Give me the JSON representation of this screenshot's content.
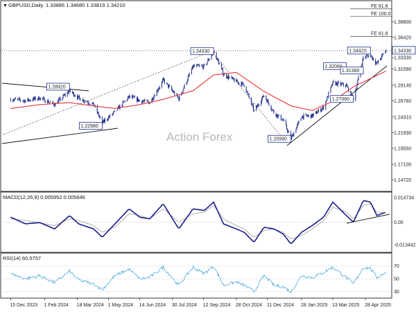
{
  "title": "GBPUSD,Daily",
  "ohlc": "1.33886 1.34680 1.33819 1.34210",
  "watermark": "Action Forex",
  "current_price": "1.34330",
  "colors": {
    "candle": "#1a2a8a",
    "ma": "#e02020",
    "macd_main": "#1a1a8a",
    "macd_signal": "#aaaaaa",
    "rsi": "#4aa8e0",
    "box_border": "#1a2a8a",
    "trendline": "#111111"
  },
  "chart_data": [
    {
      "type": "candlestick",
      "title": "GBPUSD,Daily",
      "ylim": [
        1.13,
        1.42
      ],
      "y_ticks": [
        "1.38800",
        "1.36420",
        "1.33330",
        "1.31590",
        "1.29140",
        "1.26760",
        "1.24310",
        "1.21930",
        "1.19550",
        "1.17100",
        "1.14720"
      ],
      "x_ticks": [
        "15 Dec 2023",
        "1 Feb 2024",
        "18 Mar 2024",
        "1 May 2024",
        "14 Jun 2024",
        "30 Jul 2024",
        "12 Sep 2024",
        "28 Oct 2024",
        "11 Dec 2024",
        "28 Jan 2025",
        "13 Mar 2025",
        "28 Apr 2025"
      ],
      "close_path": [
        [
          "2023-12-15",
          1.27
        ],
        [
          "2024-01-05",
          1.268
        ],
        [
          "2024-01-25",
          1.272
        ],
        [
          "2024-02-15",
          1.262
        ],
        [
          "2024-03-07",
          1.283
        ],
        [
          "2024-03-20",
          1.272
        ],
        [
          "2024-04-10",
          1.262
        ],
        [
          "2024-04-22",
          1.234
        ],
        [
          "2024-05-10",
          1.251
        ],
        [
          "2024-05-30",
          1.274
        ],
        [
          "2024-06-14",
          1.268
        ],
        [
          "2024-06-28",
          1.265
        ],
        [
          "2024-07-17",
          1.299
        ],
        [
          "2024-08-08",
          1.271
        ],
        [
          "2024-08-28",
          1.32
        ],
        [
          "2024-09-13",
          1.32
        ],
        [
          "2024-09-26",
          1.343
        ],
        [
          "2024-10-10",
          1.308
        ],
        [
          "2024-10-28",
          1.297
        ],
        [
          "2024-11-08",
          1.292
        ],
        [
          "2024-11-22",
          1.252
        ],
        [
          "2024-12-06",
          1.276
        ],
        [
          "2024-12-20",
          1.25
        ],
        [
          "2025-01-02",
          1.238
        ],
        [
          "2025-01-13",
          1.21
        ],
        [
          "2025-01-28",
          1.244
        ],
        [
          "2025-02-12",
          1.245
        ],
        [
          "2025-02-28",
          1.258
        ],
        [
          "2025-03-13",
          1.295
        ],
        [
          "2025-04-01",
          1.291
        ],
        [
          "2025-04-11",
          1.27
        ],
        [
          "2025-04-25",
          1.334
        ],
        [
          "2025-05-05",
          1.337
        ],
        [
          "2025-05-14",
          1.324
        ],
        [
          "2025-05-27",
          1.345
        ]
      ],
      "moving_average_path": [
        [
          "2023-12-15",
          1.256
        ],
        [
          "2024-01-25",
          1.262
        ],
        [
          "2024-03-07",
          1.265
        ],
        [
          "2024-04-10",
          1.26
        ],
        [
          "2024-05-10",
          1.256
        ],
        [
          "2024-06-14",
          1.262
        ],
        [
          "2024-07-17",
          1.27
        ],
        [
          "2024-08-28",
          1.283
        ],
        [
          "2024-09-26",
          1.307
        ],
        [
          "2024-10-28",
          1.311
        ],
        [
          "2024-12-06",
          1.282
        ],
        [
          "2025-01-13",
          1.26
        ],
        [
          "2025-02-12",
          1.253
        ],
        [
          "2025-03-13",
          1.267
        ],
        [
          "2025-04-11",
          1.289
        ],
        [
          "2025-05-27",
          1.313
        ]
      ],
      "annotations": [
        {
          "text": "1.28920",
          "date": "2024-03-07",
          "price": 1.2892
        },
        {
          "text": "1.22980",
          "date": "2024-04-22",
          "price": 1.2298
        },
        {
          "text": "1.34330",
          "date": "2024-09-26",
          "price": 1.3433
        },
        {
          "text": "1.20990",
          "date": "2025-01-13",
          "price": 1.2099
        },
        {
          "text": "1.27060",
          "date": "2025-04-11",
          "price": 1.2706
        },
        {
          "text": "1.32060",
          "date": "2025-04-01",
          "price": 1.3206
        },
        {
          "text": "1.31380",
          "date": "2025-04-25",
          "price": 1.3138
        },
        {
          "text": "1.34420",
          "date": "2025-05-05",
          "price": 1.3442
        }
      ],
      "fib_labels": [
        {
          "text": "FE 61.8",
          "price": 1.4075
        },
        {
          "text": "FE 100.0",
          "price": 1.396
        },
        {
          "text": "FE 61.8",
          "price": 1.3655
        }
      ]
    },
    {
      "type": "line",
      "label": "MACD(12,26,9) 0.005952 0.005646",
      "ylim": [
        -0.018,
        0.018
      ],
      "y_ticks": [
        "0.014734",
        "0.00",
        "-0.013442"
      ],
      "macd_path": [
        [
          "2023-12-15",
          0.003
        ],
        [
          "2024-01-05",
          -0.001
        ],
        [
          "2024-01-25",
          -0.0002
        ],
        [
          "2024-02-15",
          -0.004
        ],
        [
          "2024-03-07",
          0.004
        ],
        [
          "2024-03-20",
          -0.001
        ],
        [
          "2024-04-10",
          -0.004
        ],
        [
          "2024-04-22",
          -0.009
        ],
        [
          "2024-05-10",
          -0.001
        ],
        [
          "2024-05-30",
          0.008
        ],
        [
          "2024-06-14",
          0.003
        ],
        [
          "2024-06-28",
          0.002
        ],
        [
          "2024-07-17",
          0.011
        ],
        [
          "2024-08-08",
          -0.004
        ],
        [
          "2024-08-28",
          0.008
        ],
        [
          "2024-09-13",
          0.007
        ],
        [
          "2024-09-26",
          0.012
        ],
        [
          "2024-10-10",
          -0.001
        ],
        [
          "2024-10-28",
          -0.004
        ],
        [
          "2024-11-08",
          -0.006
        ],
        [
          "2024-11-22",
          -0.012
        ],
        [
          "2024-12-06",
          -0.003
        ],
        [
          "2024-12-20",
          -0.004
        ],
        [
          "2025-01-02",
          -0.007
        ],
        [
          "2025-01-13",
          -0.013
        ],
        [
          "2025-01-28",
          -0.006
        ],
        [
          "2025-02-12",
          -0.002
        ],
        [
          "2025-02-28",
          0.003
        ],
        [
          "2025-03-13",
          0.012
        ],
        [
          "2025-04-01",
          0.004
        ],
        [
          "2025-04-11",
          0.0
        ],
        [
          "2025-04-25",
          0.013
        ],
        [
          "2025-05-05",
          0.012
        ],
        [
          "2025-05-14",
          0.004
        ],
        [
          "2025-05-27",
          0.006
        ]
      ],
      "signal_path": [
        [
          "2023-12-15",
          0.002
        ],
        [
          "2024-01-05",
          0.001
        ],
        [
          "2024-01-25",
          -0.0003
        ],
        [
          "2024-02-15",
          -0.002
        ],
        [
          "2024-03-07",
          0.002
        ],
        [
          "2024-03-20",
          0.001
        ],
        [
          "2024-04-10",
          -0.002
        ],
        [
          "2024-04-22",
          -0.006
        ],
        [
          "2024-05-10",
          -0.003
        ],
        [
          "2024-05-30",
          0.005
        ],
        [
          "2024-06-14",
          0.004
        ],
        [
          "2024-06-28",
          0.002
        ],
        [
          "2024-07-17",
          0.008
        ],
        [
          "2024-08-08",
          0.0
        ],
        [
          "2024-08-28",
          0.005
        ],
        [
          "2024-09-13",
          0.006
        ],
        [
          "2024-09-26",
          0.01
        ],
        [
          "2024-10-10",
          0.002
        ],
        [
          "2024-10-28",
          -0.002
        ],
        [
          "2024-11-08",
          -0.004
        ],
        [
          "2024-11-22",
          -0.009
        ],
        [
          "2024-12-06",
          -0.005
        ],
        [
          "2024-12-20",
          -0.004
        ],
        [
          "2025-01-02",
          -0.006
        ],
        [
          "2025-01-13",
          -0.01
        ],
        [
          "2025-01-28",
          -0.008
        ],
        [
          "2025-02-12",
          -0.004
        ],
        [
          "2025-02-28",
          0.001
        ],
        [
          "2025-03-13",
          0.009
        ],
        [
          "2025-04-01",
          0.006
        ],
        [
          "2025-04-11",
          0.002
        ],
        [
          "2025-04-25",
          0.01
        ],
        [
          "2025-05-05",
          0.011
        ],
        [
          "2025-05-14",
          0.006
        ],
        [
          "2025-05-27",
          0.0056
        ]
      ]
    },
    {
      "type": "line",
      "label": "RSI(14) 60.5757",
      "ylim": [
        20,
        90
      ],
      "y_ticks": [
        "70",
        "50",
        "30"
      ],
      "rsi_path": [
        [
          "2023-12-15",
          58
        ],
        [
          "2024-01-05",
          50
        ],
        [
          "2024-01-25",
          55
        ],
        [
          "2024-02-15",
          44
        ],
        [
          "2024-03-07",
          62
        ],
        [
          "2024-03-20",
          48
        ],
        [
          "2024-04-10",
          42
        ],
        [
          "2024-04-22",
          33
        ],
        [
          "2024-05-10",
          55
        ],
        [
          "2024-05-30",
          65
        ],
        [
          "2024-06-14",
          50
        ],
        [
          "2024-06-28",
          52
        ],
        [
          "2024-07-17",
          68
        ],
        [
          "2024-08-08",
          40
        ],
        [
          "2024-08-28",
          68
        ],
        [
          "2024-09-13",
          58
        ],
        [
          "2024-09-26",
          70
        ],
        [
          "2024-10-10",
          40
        ],
        [
          "2024-10-28",
          45
        ],
        [
          "2024-11-08",
          40
        ],
        [
          "2024-11-22",
          30
        ],
        [
          "2024-12-06",
          55
        ],
        [
          "2024-12-20",
          40
        ],
        [
          "2025-01-02",
          38
        ],
        [
          "2025-01-13",
          30
        ],
        [
          "2025-01-28",
          55
        ],
        [
          "2025-02-12",
          52
        ],
        [
          "2025-02-28",
          60
        ],
        [
          "2025-03-13",
          68
        ],
        [
          "2025-04-01",
          52
        ],
        [
          "2025-04-11",
          42
        ],
        [
          "2025-04-25",
          68
        ],
        [
          "2025-05-05",
          66
        ],
        [
          "2025-05-14",
          52
        ],
        [
          "2025-05-27",
          60.6
        ]
      ]
    }
  ]
}
